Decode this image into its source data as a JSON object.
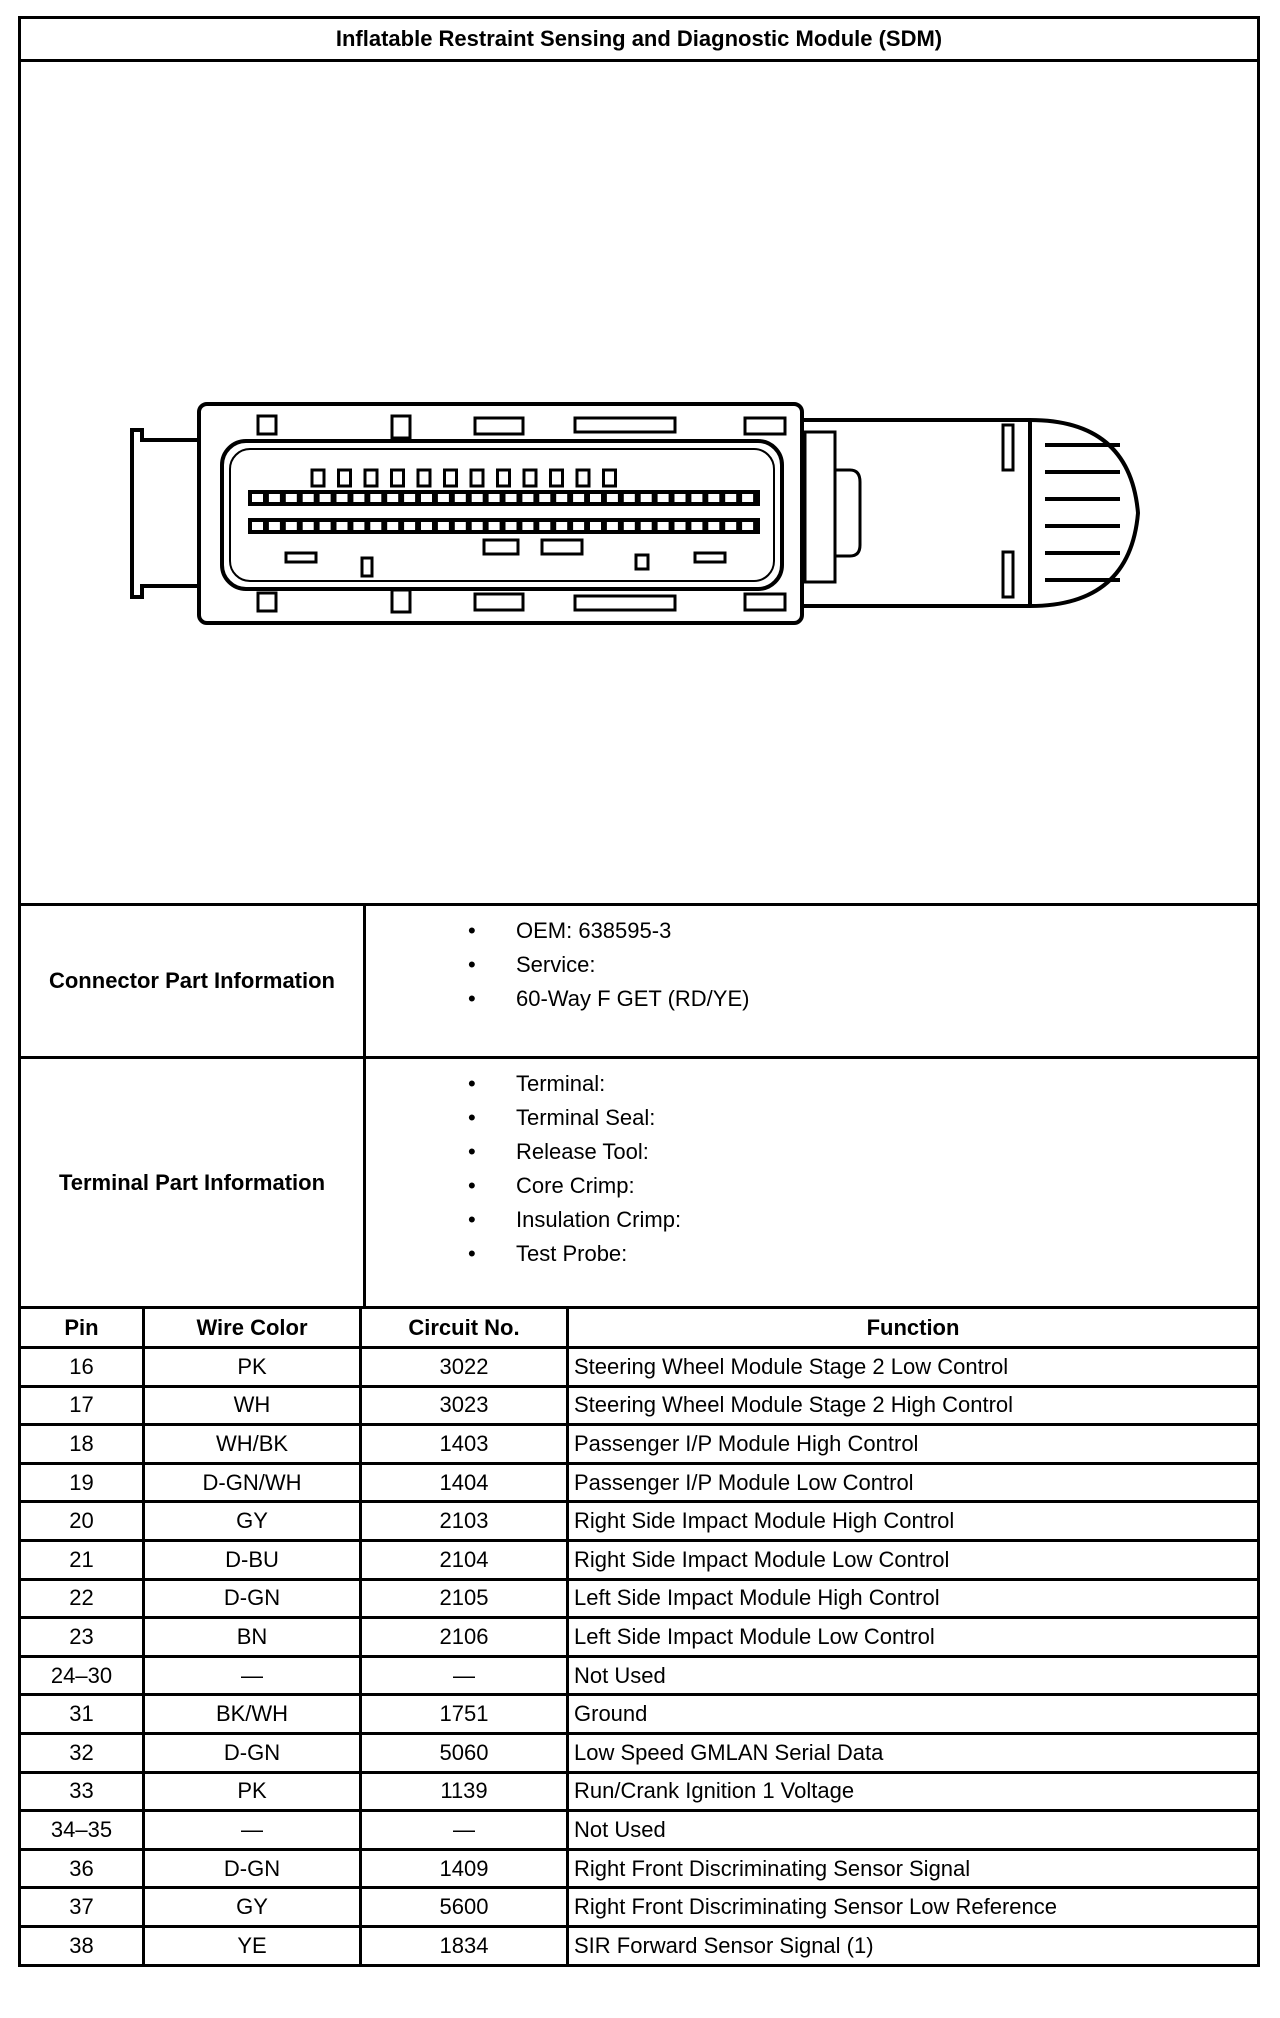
{
  "title": "Inflatable Restraint Sensing and Diagnostic Module (SDM)",
  "connector_info": {
    "label": "Connector Part Information",
    "items": [
      "OEM: 638595-3",
      "Service:",
      "60-Way F GET (RD/YE)"
    ]
  },
  "terminal_info": {
    "label": "Terminal Part Information",
    "items": [
      "Terminal:",
      "Terminal Seal:",
      "Release Tool:",
      "Core Crimp:",
      "Insulation Crimp:",
      "Test Probe:"
    ]
  },
  "table": {
    "headers": [
      "Pin",
      "Wire Color",
      "Circuit No.",
      "Function"
    ],
    "rows": [
      [
        "16",
        "PK",
        "3022",
        "Steering Wheel Module Stage 2 Low Control"
      ],
      [
        "17",
        "WH",
        "3023",
        "Steering Wheel Module Stage 2 High Control"
      ],
      [
        "18",
        "WH/BK",
        "1403",
        "Passenger I/P Module High Control"
      ],
      [
        "19",
        "D-GN/WH",
        "1404",
        "Passenger I/P Module Low Control"
      ],
      [
        "20",
        "GY",
        "2103",
        "Right Side Impact Module High Control"
      ],
      [
        "21",
        "D-BU",
        "2104",
        "Right Side Impact Module Low Control"
      ],
      [
        "22",
        "D-GN",
        "2105",
        "Left Side Impact Module High Control"
      ],
      [
        "23",
        "BN",
        "2106",
        "Left Side Impact Module Low Control"
      ],
      [
        "24–30",
        "—",
        "—",
        "Not Used"
      ],
      [
        "31",
        "BK/WH",
        "1751",
        "Ground"
      ],
      [
        "32",
        "D-GN",
        "5060",
        "Low Speed GMLAN Serial Data"
      ],
      [
        "33",
        "PK",
        "1139",
        "Run/Crank Ignition 1 Voltage"
      ],
      [
        "34–35",
        "—",
        "—",
        "Not Used"
      ],
      [
        "36",
        "D-GN",
        "1409",
        "Right Front Discriminating Sensor Signal"
      ],
      [
        "37",
        "GY",
        "5600",
        "Right Front Discriminating Sensor Low Reference"
      ],
      [
        "38",
        "YE",
        "1834",
        "SIR Forward Sensor Signal (1)"
      ]
    ]
  }
}
